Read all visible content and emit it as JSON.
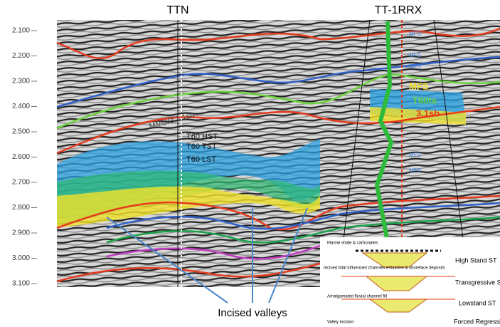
{
  "wells": {
    "left": "TTN",
    "right": "TT-1RRX"
  },
  "depth_labels": [
    "2.100",
    "2.200",
    "2.300",
    "2.400",
    "2.500",
    "2.600",
    "2.700",
    "2.800",
    "2.900",
    "3.000",
    "3.100"
  ],
  "annotations": {
    "sb_left": "MMU/3.1.1sb",
    "hst": "T60 HST",
    "tst": "T60 TST",
    "lst": "T60 LST",
    "mfs_big": "MFS",
    "ts": "T60ts",
    "sb_right": "3.1sb",
    "valleys": "Incised valleys"
  },
  "mfs_labels": [
    "MFS",
    "MFS",
    "MFS",
    "MFS",
    "MFS"
  ],
  "inset": {
    "marine": "Marine shale & carbonates",
    "hst": "High Stand ST",
    "tidal": "Incised tidal influenced channels estuarine & shoreface deposits",
    "tst": "Transgressive ST",
    "fluvial": "Amalgamated fluvial channel fill",
    "lst": "Lowstand ST",
    "incision": "Valley incision",
    "fr": "Forced Regressio"
  }
}
